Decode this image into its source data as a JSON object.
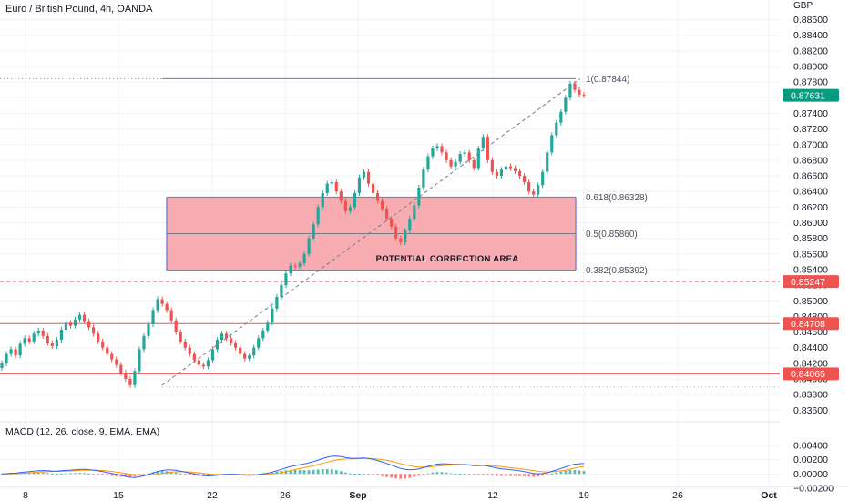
{
  "header": {
    "title": "Euro / British Pound, 4h, OANDA",
    "currency": "GBP",
    "macd_label": "MACD (12, 26, close, 9, EMA, EMA)"
  },
  "colors": {
    "up": "#26a69a",
    "down": "#ef5350",
    "zone_fill": "#f7a8ae",
    "zone_border": "#7b86d6",
    "level_line": "#ef5350",
    "current_price": "#089981",
    "macd_line": "#2962ff",
    "signal_line": "#ff9800",
    "grid": "#f0f3fa"
  },
  "chart_data": [
    {
      "type": "line",
      "name": "price",
      "title": "Euro / British Pound, 4h, OANDA",
      "ylabel": "GBP",
      "ylim": [
        0.834,
        0.89
      ],
      "yticks": [
        0.836,
        0.838,
        0.84,
        0.842,
        0.844,
        0.846,
        0.848,
        0.85,
        0.852,
        0.854,
        0.856,
        0.858,
        0.86,
        0.862,
        0.864,
        0.866,
        0.868,
        0.87,
        0.872,
        0.874,
        0.876,
        0.878,
        0.88,
        0.882,
        0.884,
        0.886
      ],
      "xticks": [
        "8",
        "15",
        "22",
        "26",
        "Sep",
        "12",
        "19",
        "26",
        "Oct"
      ],
      "series": [
        {
          "values": [
            0.842,
            0.8432,
            0.8438,
            0.843,
            0.8445,
            0.8452,
            0.8448,
            0.8458,
            0.8462,
            0.8455,
            0.8446,
            0.8442,
            0.845,
            0.8463,
            0.8472,
            0.8468,
            0.8476,
            0.8482,
            0.8474,
            0.8466,
            0.8458,
            0.8448,
            0.844,
            0.8432,
            0.8425,
            0.8418,
            0.8408,
            0.84,
            0.8392,
            0.841,
            0.8438,
            0.8455,
            0.847,
            0.8488,
            0.8502,
            0.8496,
            0.8488,
            0.8475,
            0.846,
            0.8448,
            0.844,
            0.8432,
            0.8424,
            0.8418,
            0.8416,
            0.8424,
            0.8438,
            0.845,
            0.8458,
            0.8452,
            0.8446,
            0.844,
            0.8432,
            0.8426,
            0.843,
            0.844,
            0.8452,
            0.8462,
            0.8472,
            0.849,
            0.8505,
            0.852,
            0.8535,
            0.8545,
            0.8544,
            0.8548,
            0.856,
            0.858,
            0.8598,
            0.862,
            0.8638,
            0.865,
            0.8652,
            0.864,
            0.8628,
            0.8615,
            0.862,
            0.8638,
            0.8658,
            0.8665,
            0.865,
            0.8638,
            0.8628,
            0.8618,
            0.8605,
            0.8595,
            0.858,
            0.8575,
            0.859,
            0.8605,
            0.8622,
            0.8645,
            0.8668,
            0.8685,
            0.8695,
            0.8698,
            0.869,
            0.868,
            0.8672,
            0.8678,
            0.8688,
            0.869,
            0.868,
            0.867,
            0.8695,
            0.871,
            0.868,
            0.8665,
            0.866,
            0.8668,
            0.8672,
            0.867,
            0.8666,
            0.866,
            0.8652,
            0.864,
            0.8636,
            0.8648,
            0.8665,
            0.869,
            0.8712,
            0.8728,
            0.8742,
            0.876,
            0.8778,
            0.877,
            0.8764,
            0.8763
          ]
        }
      ],
      "fibonacci": [
        {
          "label": "1(0.87844)",
          "value": 0.87844
        },
        {
          "label": "0.618(0.86328)",
          "value": 0.86328
        },
        {
          "label": "0.5(0.85860)",
          "value": 0.8586
        },
        {
          "label": "0.382(0.85392)",
          "value": 0.85392
        }
      ],
      "zone_label": "POTENTIAL CORRECTION AREA",
      "price_labels": [
        {
          "label": "0.87631",
          "value": 0.87631,
          "kind": "current"
        },
        {
          "label": "0.85247",
          "value": 0.85247,
          "kind": "level",
          "dashed": true
        },
        {
          "label": "0.84708",
          "value": 0.84708,
          "kind": "level",
          "dashed": false
        },
        {
          "label": "0.84065",
          "value": 0.84065,
          "kind": "level",
          "dashed": false
        }
      ]
    },
    {
      "type": "line",
      "name": "MACD",
      "title": "MACD (12, 26, close, 9, EMA, EMA)",
      "ylim": [
        -0.0026,
        0.0056
      ],
      "yticks": [
        0.004,
        0.002,
        0.0,
        -0.002
      ],
      "ytick_labels": [
        "0.00400",
        "0.00200",
        "0.00000",
        "−0.00200"
      ]
    }
  ]
}
